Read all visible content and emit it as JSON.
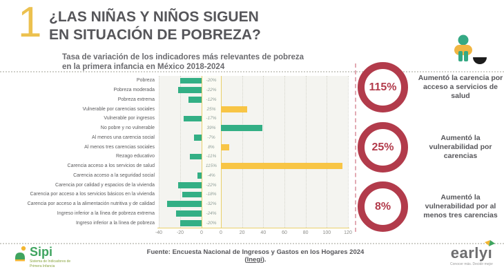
{
  "header": {
    "number": "1",
    "title": "¿LAS NIÑAS Y NIÑOS SIGUEN EN SITUACIÓN DE POBREZA?",
    "title_lines": [
      "¿LAS NIÑAS Y NIÑOS SIGUEN",
      "EN SITUACIÓN DE POBREZA?"
    ]
  },
  "chart_data": {
    "type": "bar",
    "orientation": "horizontal",
    "title": "Tasa de variación de los indicadores más relevantes de pobreza en la primera infancia en México 2018-2024",
    "title_lines": [
      "Tasa de variación de los indicadores más relevantes de pobreza",
      "en la primera infancia en México 2018-2024"
    ],
    "categories": [
      "Pobreza",
      "Pobreza moderada",
      "Pobreza extrema",
      "Vulnerable por carencias sociales",
      "Vulnerable por ingresos",
      "No pobre y no vulnerable",
      "Al menos una carencia social",
      "Al menos tres carencias sociales",
      "Rezago educativo",
      "Carencia acceso a los servicios de salud",
      "Carencia acceso a la seguridad social",
      "Carencia por calidad y espacios de la vivienda",
      "Carencia por acceso a los servicios básicos en la vivienda",
      "Carencia por acceso a la alimentación nutritiva y de calidad",
      "Ingreso inferior a la línea de pobreza extrema",
      "Ingreso inferior a la línea de pobreza"
    ],
    "values": [
      -20,
      -22,
      -12,
      25,
      -17,
      39,
      -7,
      8,
      -11,
      115,
      -4,
      -22,
      -18,
      -32,
      -24,
      -20
    ],
    "value_labels": [
      "-20%",
      "-22%",
      "-12%",
      "25%",
      "-17%",
      "39%",
      "-7%",
      "8%",
      "-11%",
      "115%",
      "-4%",
      "-22%",
      "-18%",
      "-32%",
      "-24%",
      "-20%"
    ],
    "bar_color_keys": [
      "green",
      "green",
      "green",
      "yellow",
      "green",
      "green",
      "green",
      "yellow",
      "green",
      "yellow",
      "green",
      "green",
      "green",
      "green",
      "green",
      "green"
    ],
    "palette": {
      "green": "#33af85",
      "yellow": "#f8c545"
    },
    "xlim_negative": [
      -40,
      0
    ],
    "xlim_positive": [
      0,
      120
    ],
    "x_ticks_negative": [
      -40,
      -20,
      0
    ],
    "x_ticks_positive": [
      0,
      20,
      40,
      60,
      80,
      100,
      120
    ],
    "grid": "dotted vertical gridlines",
    "legend": "none"
  },
  "stats": [
    {
      "value": "115%",
      "label": "Aumentó la carencia por acceso a servicios de salud"
    },
    {
      "value": "25%",
      "label": "Aumentó la vulnerabilidad por carencias"
    },
    {
      "value": "8%",
      "label": "Aumentó la vulnerabilidad por al menos tres carencias"
    }
  ],
  "footer": {
    "source_prefix": "Fuente: Encuesta Nacional de Ingresos y Gastos en los Hogares 2024 (",
    "source_link": "Inegi",
    "source_suffix": ").",
    "sipi": {
      "name": "Sipi",
      "tagline": "Sistema de Indicadores de Primera Infancia"
    },
    "early": {
      "name": "early",
      "i": "ı",
      "tagline": "Conocer más. Decidir mejor"
    }
  },
  "colors": {
    "bar_green": "#33af85",
    "bar_yellow": "#f8c545",
    "stat_red": "#b23b4b",
    "accent_gold": "#ecc14f",
    "axis_gold": "#e9cf6a"
  }
}
